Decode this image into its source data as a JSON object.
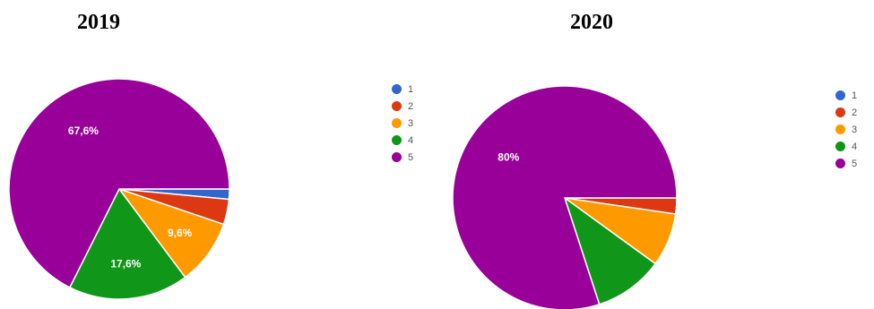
{
  "chart_data": [
    {
      "type": "pie",
      "title": "2019",
      "labels": [
        "1",
        "2",
        "3",
        "4",
        "5"
      ],
      "values": [
        1.5,
        3.7,
        9.6,
        17.6,
        67.6
      ],
      "colors": [
        "#3366cc",
        "#dc3912",
        "#ff9900",
        "#109618",
        "#990099"
      ],
      "data_labels": [
        "",
        "",
        "9,6%",
        "17,6%",
        "67,6%"
      ],
      "legend": "right"
    },
    {
      "type": "pie",
      "title": "2020",
      "labels": [
        "1",
        "2",
        "3",
        "4",
        "5"
      ],
      "values": [
        0,
        2.3,
        7.7,
        10.0,
        80.0
      ],
      "colors": [
        "#3366cc",
        "#dc3912",
        "#ff9900",
        "#109618",
        "#990099"
      ],
      "data_labels": [
        "",
        "",
        "",
        "",
        "80%"
      ],
      "legend": "right"
    }
  ]
}
